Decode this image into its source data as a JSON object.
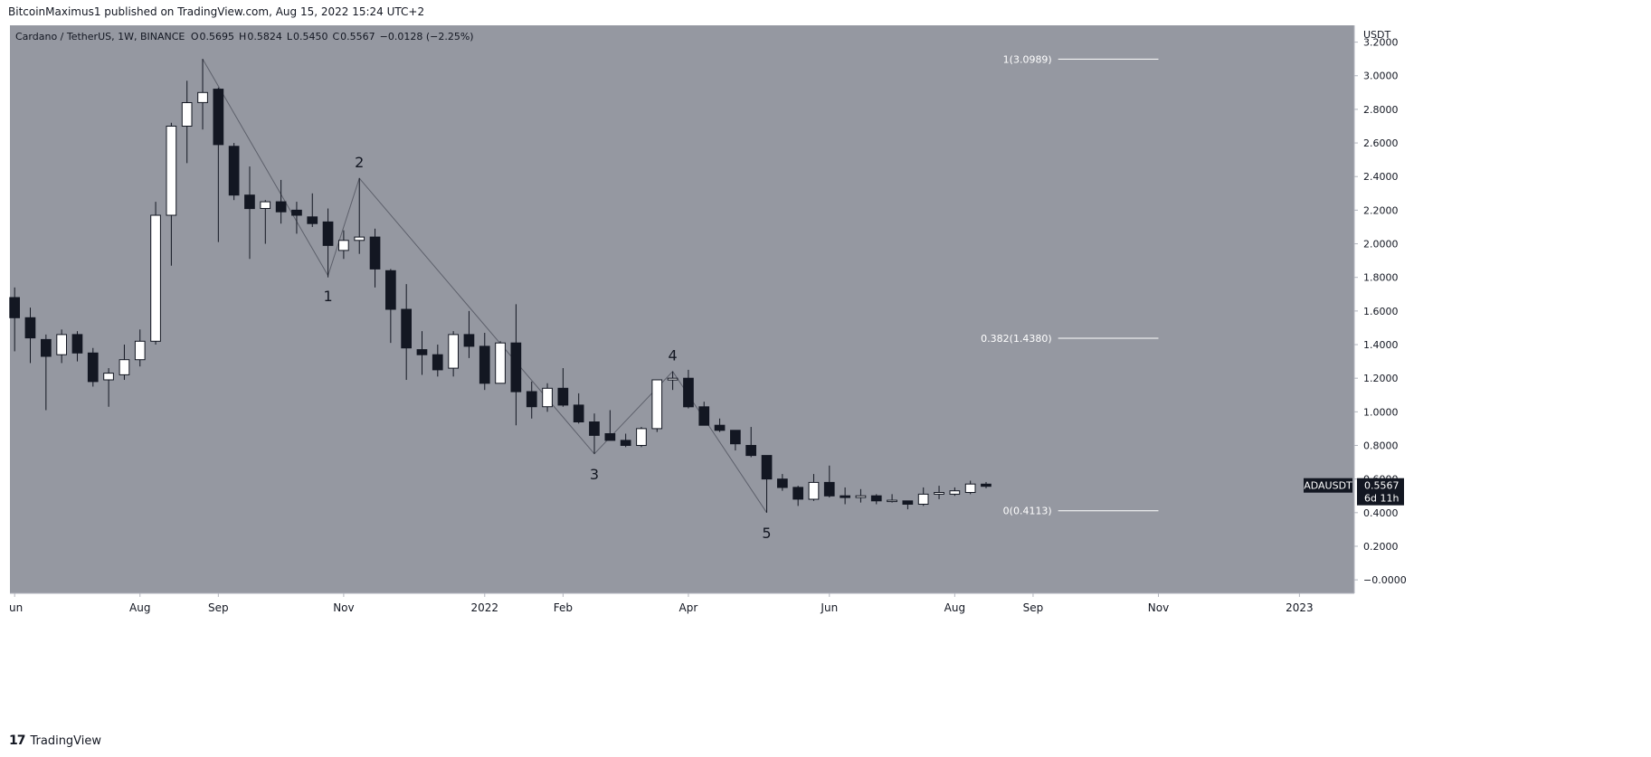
{
  "header": {
    "published": "BitcoinMaximus1 published on TradingView.com, Aug 15, 2022 15:24 UTC+2"
  },
  "footer": {
    "brand": "TradingView",
    "logo_mark": "17"
  },
  "colors": {
    "plot_bg": "#9598a1",
    "up_body": "#ffffff",
    "down_body": "#131722",
    "wick": "#131722",
    "fib_line": "#ffffff",
    "wave_line": "#5d606b",
    "price_tag_bg": "#131722"
  },
  "chart_data": {
    "type": "candlestick",
    "symbol": "Cardano / TetherUS, 1W, BINANCE",
    "ohlc_header": [
      {
        "label": "O",
        "value": "0.5695"
      },
      {
        "label": "H",
        "value": "0.5824"
      },
      {
        "label": "L",
        "value": "0.5450"
      },
      {
        "label": "C",
        "value": "0.5567"
      },
      {
        "label": "",
        "value": "−0.0128 (−2.25%)"
      }
    ],
    "y_axis": {
      "unit": "USDT",
      "range": [
        -0.08,
        3.3
      ],
      "ticks": [
        "3.2000",
        "3.0000",
        "2.8000",
        "2.6000",
        "2.4000",
        "2.2000",
        "2.0000",
        "1.8000",
        "1.6000",
        "1.4000",
        "1.2000",
        "1.0000",
        "0.8000",
        "0.6000",
        "0.4000",
        "0.2000",
        "−0.0000"
      ],
      "tick_values": [
        3.2,
        3.0,
        2.8,
        2.6,
        2.4,
        2.2,
        2.0,
        1.8,
        1.6,
        1.4,
        1.2,
        1.0,
        0.8,
        0.6,
        0.4,
        0.2,
        0.0
      ]
    },
    "x_axis": {
      "tick_labels": [
        "un",
        "Aug",
        "Sep",
        "Nov",
        "2022",
        "Feb",
        "Apr",
        "Jun",
        "Aug",
        "Sep",
        "Nov",
        "2023"
      ],
      "tick_weeks": [
        0,
        8,
        13,
        21,
        30,
        35,
        43,
        52,
        60,
        65,
        73,
        82
      ],
      "week_range": [
        -0.3,
        85.5
      ]
    },
    "candles": [
      {
        "w": 0,
        "o": 1.68,
        "h": 1.74,
        "l": 1.36,
        "c": 1.56
      },
      {
        "w": 1,
        "o": 1.56,
        "h": 1.62,
        "l": 1.29,
        "c": 1.44
      },
      {
        "w": 2,
        "o": 1.43,
        "h": 1.46,
        "l": 1.01,
        "c": 1.33
      },
      {
        "w": 3,
        "o": 1.34,
        "h": 1.49,
        "l": 1.29,
        "c": 1.46
      },
      {
        "w": 4,
        "o": 1.46,
        "h": 1.48,
        "l": 1.3,
        "c": 1.35
      },
      {
        "w": 5,
        "o": 1.35,
        "h": 1.38,
        "l": 1.15,
        "c": 1.18
      },
      {
        "w": 6,
        "o": 1.19,
        "h": 1.26,
        "l": 1.03,
        "c": 1.23
      },
      {
        "w": 7,
        "o": 1.22,
        "h": 1.4,
        "l": 1.19,
        "c": 1.31
      },
      {
        "w": 8,
        "o": 1.31,
        "h": 1.49,
        "l": 1.27,
        "c": 1.42
      },
      {
        "w": 9,
        "o": 1.42,
        "h": 2.25,
        "l": 1.4,
        "c": 2.17
      },
      {
        "w": 10,
        "o": 2.17,
        "h": 2.72,
        "l": 1.87,
        "c": 2.7
      },
      {
        "w": 11,
        "o": 2.7,
        "h": 2.97,
        "l": 2.48,
        "c": 2.84
      },
      {
        "w": 12,
        "o": 2.84,
        "h": 3.1,
        "l": 2.68,
        "c": 2.9
      },
      {
        "w": 13,
        "o": 2.92,
        "h": 2.93,
        "l": 2.01,
        "c": 2.59
      },
      {
        "w": 14,
        "o": 2.58,
        "h": 2.6,
        "l": 2.26,
        "c": 2.29
      },
      {
        "w": 15,
        "o": 2.29,
        "h": 2.46,
        "l": 1.91,
        "c": 2.21
      },
      {
        "w": 16,
        "o": 2.21,
        "h": 2.26,
        "l": 2.0,
        "c": 2.25
      },
      {
        "w": 17,
        "o": 2.25,
        "h": 2.38,
        "l": 2.12,
        "c": 2.19
      },
      {
        "w": 18,
        "o": 2.2,
        "h": 2.25,
        "l": 2.06,
        "c": 2.17
      },
      {
        "w": 19,
        "o": 2.16,
        "h": 2.3,
        "l": 2.1,
        "c": 2.12
      },
      {
        "w": 20,
        "o": 2.13,
        "h": 2.21,
        "l": 1.8,
        "c": 1.99
      },
      {
        "w": 21,
        "o": 1.96,
        "h": 2.08,
        "l": 1.91,
        "c": 2.02
      },
      {
        "w": 22,
        "o": 2.02,
        "h": 2.39,
        "l": 1.94,
        "c": 2.04
      },
      {
        "w": 23,
        "o": 2.04,
        "h": 2.09,
        "l": 1.74,
        "c": 1.85
      },
      {
        "w": 24,
        "o": 1.84,
        "h": 1.85,
        "l": 1.41,
        "c": 1.61
      },
      {
        "w": 25,
        "o": 1.61,
        "h": 1.76,
        "l": 1.19,
        "c": 1.38
      },
      {
        "w": 26,
        "o": 1.37,
        "h": 1.48,
        "l": 1.22,
        "c": 1.34
      },
      {
        "w": 27,
        "o": 1.34,
        "h": 1.4,
        "l": 1.21,
        "c": 1.25
      },
      {
        "w": 28,
        "o": 1.26,
        "h": 1.48,
        "l": 1.21,
        "c": 1.46
      },
      {
        "w": 29,
        "o": 1.46,
        "h": 1.6,
        "l": 1.32,
        "c": 1.39
      },
      {
        "w": 30,
        "o": 1.39,
        "h": 1.47,
        "l": 1.13,
        "c": 1.17
      },
      {
        "w": 31,
        "o": 1.17,
        "h": 1.42,
        "l": 1.17,
        "c": 1.41
      },
      {
        "w": 32,
        "o": 1.41,
        "h": 1.64,
        "l": 0.92,
        "c": 1.12
      },
      {
        "w": 33,
        "o": 1.12,
        "h": 1.18,
        "l": 0.96,
        "c": 1.03
      },
      {
        "w": 34,
        "o": 1.03,
        "h": 1.17,
        "l": 1.0,
        "c": 1.14
      },
      {
        "w": 35,
        "o": 1.14,
        "h": 1.26,
        "l": 1.03,
        "c": 1.04
      },
      {
        "w": 36,
        "o": 1.04,
        "h": 1.11,
        "l": 0.93,
        "c": 0.94
      },
      {
        "w": 37,
        "o": 0.94,
        "h": 0.99,
        "l": 0.75,
        "c": 0.86
      },
      {
        "w": 38,
        "o": 0.87,
        "h": 1.01,
        "l": 0.83,
        "c": 0.83
      },
      {
        "w": 39,
        "o": 0.83,
        "h": 0.87,
        "l": 0.79,
        "c": 0.8
      },
      {
        "w": 40,
        "o": 0.8,
        "h": 0.91,
        "l": 0.79,
        "c": 0.9
      },
      {
        "w": 41,
        "o": 0.9,
        "h": 1.19,
        "l": 0.88,
        "c": 1.19
      },
      {
        "w": 42,
        "o": 1.19,
        "h": 1.24,
        "l": 1.13,
        "c": 1.2
      },
      {
        "w": 43,
        "o": 1.2,
        "h": 1.25,
        "l": 1.02,
        "c": 1.03
      },
      {
        "w": 44,
        "o": 1.03,
        "h": 1.06,
        "l": 0.92,
        "c": 0.92
      },
      {
        "w": 45,
        "o": 0.92,
        "h": 0.96,
        "l": 0.88,
        "c": 0.89
      },
      {
        "w": 46,
        "o": 0.89,
        "h": 0.89,
        "l": 0.77,
        "c": 0.81
      },
      {
        "w": 47,
        "o": 0.8,
        "h": 0.91,
        "l": 0.73,
        "c": 0.74
      },
      {
        "w": 48,
        "o": 0.74,
        "h": 0.74,
        "l": 0.4,
        "c": 0.6
      },
      {
        "w": 49,
        "o": 0.6,
        "h": 0.63,
        "l": 0.53,
        "c": 0.55
      },
      {
        "w": 50,
        "o": 0.55,
        "h": 0.56,
        "l": 0.44,
        "c": 0.48
      },
      {
        "w": 51,
        "o": 0.48,
        "h": 0.63,
        "l": 0.47,
        "c": 0.58
      },
      {
        "w": 52,
        "o": 0.58,
        "h": 0.68,
        "l": 0.49,
        "c": 0.5
      },
      {
        "w": 53,
        "o": 0.5,
        "h": 0.55,
        "l": 0.45,
        "c": 0.49
      },
      {
        "w": 54,
        "o": 0.49,
        "h": 0.54,
        "l": 0.46,
        "c": 0.5
      },
      {
        "w": 55,
        "o": 0.5,
        "h": 0.51,
        "l": 0.45,
        "c": 0.47
      },
      {
        "w": 56,
        "o": 0.47,
        "h": 0.51,
        "l": 0.46,
        "c": 0.47
      },
      {
        "w": 57,
        "o": 0.47,
        "h": 0.47,
        "l": 0.42,
        "c": 0.45
      },
      {
        "w": 58,
        "o": 0.45,
        "h": 0.55,
        "l": 0.44,
        "c": 0.51
      },
      {
        "w": 59,
        "o": 0.51,
        "h": 0.56,
        "l": 0.48,
        "c": 0.52
      },
      {
        "w": 60,
        "o": 0.51,
        "h": 0.55,
        "l": 0.5,
        "c": 0.53
      },
      {
        "w": 61,
        "o": 0.52,
        "h": 0.59,
        "l": 0.51,
        "c": 0.57
      },
      {
        "w": 62,
        "o": 0.5695,
        "h": 0.5824,
        "l": 0.545,
        "c": 0.5567
      }
    ],
    "wave_path": [
      {
        "w": 12.0,
        "v": 3.1
      },
      {
        "w": 20.0,
        "v": 1.81
      },
      {
        "w": 22.0,
        "v": 2.39
      },
      {
        "w": 37.0,
        "v": 0.75
      },
      {
        "w": 42.0,
        "v": 1.24
      },
      {
        "w": 48.0,
        "v": 0.4
      }
    ],
    "wave_labels": [
      {
        "text": "1",
        "w": 20.0,
        "v": 1.81,
        "pos": "below"
      },
      {
        "text": "2",
        "w": 22.0,
        "v": 2.39,
        "pos": "above"
      },
      {
        "text": "3",
        "w": 37.0,
        "v": 0.75,
        "pos": "below"
      },
      {
        "text": "4",
        "w": 42.0,
        "v": 1.24,
        "pos": "above"
      },
      {
        "text": "5",
        "w": 48.0,
        "v": 0.4,
        "pos": "below"
      }
    ],
    "fib_levels": [
      {
        "label": "1(3.0989)",
        "value": 3.0989
      },
      {
        "label": "0.382(1.4380)",
        "value": 1.438
      },
      {
        "label": "0(0.4113)",
        "value": 0.4113
      }
    ],
    "fib_w_range": [
      64.3,
      73.0
    ],
    "price_tag": {
      "symbol": "ADAUSDT",
      "price": "0.5567",
      "countdown": "6d 11h",
      "value": 0.5567
    }
  }
}
